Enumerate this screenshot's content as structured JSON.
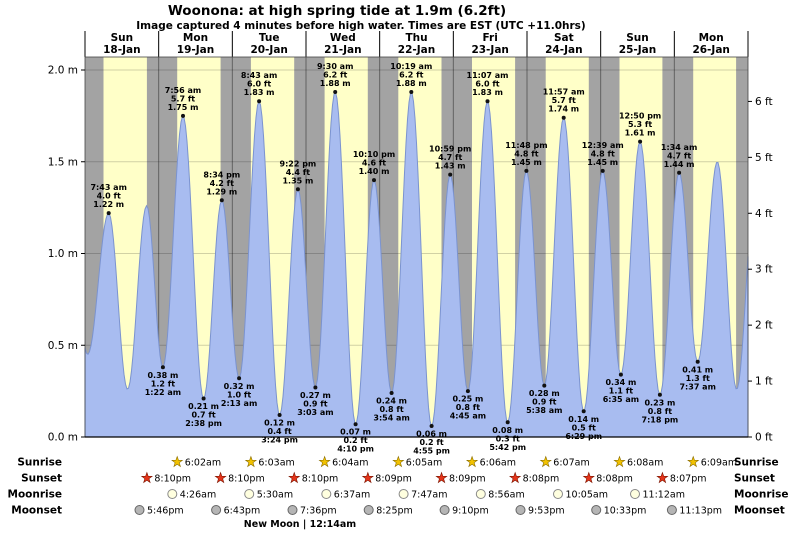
{
  "header": {
    "title": "Woonona: at high  spring tide at 1.9m (6.2ft)",
    "subtitle": "Image captured 4 minutes before high water. Times are EST (UTC +11.0hrs)"
  },
  "chart_data": {
    "type": "area",
    "title": "Woonona: at high  spring tide at 1.9m (6.2ft)",
    "subtitle": "Image captured 4 minutes before high water. Times are EST (UTC +11.0hrs)",
    "days": [
      {
        "name": "Sun",
        "date": "18-Jan"
      },
      {
        "name": "Mon",
        "date": "19-Jan"
      },
      {
        "name": "Tue",
        "date": "20-Jan"
      },
      {
        "name": "Wed",
        "date": "21-Jan"
      },
      {
        "name": "Thu",
        "date": "22-Jan"
      },
      {
        "name": "Fri",
        "date": "23-Jan"
      },
      {
        "name": "Sat",
        "date": "24-Jan"
      },
      {
        "name": "Sun",
        "date": "25-Jan"
      },
      {
        "name": "Mon",
        "date": "26-Jan"
      }
    ],
    "y_axis_left": {
      "unit": "m",
      "ticks": [
        {
          "label": "0.0 m",
          "value": 0.0
        },
        {
          "label": "0.5 m",
          "value": 0.5
        },
        {
          "label": "1.0 m",
          "value": 1.0
        },
        {
          "label": "1.5 m",
          "value": 1.5
        },
        {
          "label": "2.0 m",
          "value": 2.0
        }
      ]
    },
    "y_axis_right": {
      "unit": "ft",
      "ticks": [
        {
          "label": "0 ft",
          "value": 0
        },
        {
          "label": "1 ft",
          "value": 1
        },
        {
          "label": "2 ft",
          "value": 2
        },
        {
          "label": "3 ft",
          "value": 3
        },
        {
          "label": "4 ft",
          "value": 4
        },
        {
          "label": "5 ft",
          "value": 5
        },
        {
          "label": "6 ft",
          "value": 6
        }
      ]
    },
    "ylim_m": [
      0,
      2.07
    ],
    "tide_events": [
      {
        "day": 0,
        "time": "7:43 am",
        "height_m": 1.22,
        "height_ft": "4.0",
        "type": "high"
      },
      {
        "day": 1,
        "time": "1:22 am",
        "height_m": 0.38,
        "height_ft": "1.2",
        "type": "low"
      },
      {
        "day": 1,
        "time": "7:56 am",
        "height_m": 1.75,
        "height_ft": "5.7",
        "type": "high"
      },
      {
        "day": 1,
        "time": "2:38 pm",
        "height_m": 0.21,
        "height_ft": "0.7",
        "type": "low"
      },
      {
        "day": 1,
        "time": "8:34 pm",
        "height_m": 1.29,
        "height_ft": "4.2",
        "type": "high"
      },
      {
        "day": 2,
        "time": "2:13 am",
        "height_m": 0.32,
        "height_ft": "1.0",
        "type": "low"
      },
      {
        "day": 2,
        "time": "8:43 am",
        "height_m": 1.83,
        "height_ft": "6.0",
        "type": "high"
      },
      {
        "day": 2,
        "time": "3:24 pm",
        "height_m": 0.12,
        "height_ft": "0.4",
        "type": "low"
      },
      {
        "day": 2,
        "time": "9:22 pm",
        "height_m": 1.35,
        "height_ft": "4.4",
        "type": "high"
      },
      {
        "day": 3,
        "time": "3:03 am",
        "height_m": 0.27,
        "height_ft": "0.9",
        "type": "low"
      },
      {
        "day": 3,
        "time": "9:30 am",
        "height_m": 1.88,
        "height_ft": "6.2",
        "type": "high"
      },
      {
        "day": 3,
        "time": "4:10 pm",
        "height_m": 0.07,
        "height_ft": "0.2",
        "type": "low"
      },
      {
        "day": 3,
        "time": "10:10 pm",
        "height_m": 1.4,
        "height_ft": "4.6",
        "type": "high"
      },
      {
        "day": 4,
        "time": "3:54 am",
        "height_m": 0.24,
        "height_ft": "0.8",
        "type": "low"
      },
      {
        "day": 4,
        "time": "10:19 am",
        "height_m": 1.88,
        "height_ft": "6.2",
        "type": "high"
      },
      {
        "day": 4,
        "time": "4:55 pm",
        "height_m": 0.06,
        "height_ft": "0.2",
        "type": "low"
      },
      {
        "day": 4,
        "time": "10:59 pm",
        "height_m": 1.43,
        "height_ft": "4.7",
        "type": "high"
      },
      {
        "day": 5,
        "time": "4:45 am",
        "height_m": 0.25,
        "height_ft": "0.8",
        "type": "low"
      },
      {
        "day": 5,
        "time": "11:07 am",
        "height_m": 1.83,
        "height_ft": "6.0",
        "type": "high"
      },
      {
        "day": 5,
        "time": "5:42 pm",
        "height_m": 0.08,
        "height_ft": "0.3",
        "type": "low"
      },
      {
        "day": 5,
        "time": "11:48 pm",
        "height_m": 1.45,
        "height_ft": "4.8",
        "type": "high"
      },
      {
        "day": 6,
        "time": "5:38 am",
        "height_m": 0.28,
        "height_ft": "0.9",
        "type": "low"
      },
      {
        "day": 6,
        "time": "11:57 am",
        "height_m": 1.74,
        "height_ft": "5.7",
        "type": "high"
      },
      {
        "day": 6,
        "time": "6:29 pm",
        "height_m": 0.14,
        "height_ft": "0.5",
        "type": "low"
      },
      {
        "day": 7,
        "time": "12:39 am",
        "height_m": 1.45,
        "height_ft": "4.8",
        "type": "high"
      },
      {
        "day": 7,
        "time": "6:35 am",
        "height_m": 0.34,
        "height_ft": "1.1",
        "type": "low"
      },
      {
        "day": 7,
        "time": "12:50 pm",
        "height_m": 1.61,
        "height_ft": "5.3",
        "type": "high"
      },
      {
        "day": 7,
        "time": "7:18 pm",
        "height_m": 0.23,
        "height_ft": "0.8",
        "type": "low"
      },
      {
        "day": 8,
        "time": "1:34 am",
        "height_m": 1.44,
        "height_ft": "4.7",
        "type": "high"
      },
      {
        "day": 8,
        "time": "7:37 am",
        "height_m": 0.41,
        "height_ft": "1.3",
        "type": "low"
      }
    ],
    "curve_anchors": [
      {
        "t_hours": -5.2,
        "height_m": 1.2
      },
      {
        "t_hours": 0.85,
        "height_m": 0.45
      },
      {
        "t_hours": 13.87,
        "height_m": 0.26
      },
      {
        "t_hours": 20.08,
        "height_m": 1.26
      },
      {
        "t_hours": 206.0,
        "height_m": 1.5
      },
      {
        "t_hours": 212.3,
        "height_m": 0.26
      },
      {
        "t_hours": 218.4,
        "height_m": 1.35
      }
    ],
    "night_shading": {
      "left_band_end_hour": 6.03,
      "right_band_start_hour": 212.12
    },
    "astronomy": {
      "sunrise": [
        {
          "day": 1,
          "time": "6:02am"
        },
        {
          "day": 2,
          "time": "6:03am"
        },
        {
          "day": 3,
          "time": "6:04am"
        },
        {
          "day": 4,
          "time": "6:05am"
        },
        {
          "day": 5,
          "time": "6:06am"
        },
        {
          "day": 6,
          "time": "6:07am"
        },
        {
          "day": 7,
          "time": "6:08am"
        },
        {
          "day": 8,
          "time": "6:09am"
        }
      ],
      "sunset": [
        {
          "day": 0,
          "time": "8:10pm"
        },
        {
          "day": 1,
          "time": "8:10pm"
        },
        {
          "day": 2,
          "time": "8:10pm"
        },
        {
          "day": 3,
          "time": "8:09pm"
        },
        {
          "day": 4,
          "time": "8:09pm"
        },
        {
          "day": 5,
          "time": "8:08pm"
        },
        {
          "day": 6,
          "time": "8:08pm"
        },
        {
          "day": 7,
          "time": "8:07pm"
        }
      ],
      "moonrise": [
        {
          "day": 1,
          "time": "4:26am"
        },
        {
          "day": 2,
          "time": "5:30am"
        },
        {
          "day": 3,
          "time": "6:37am"
        },
        {
          "day": 4,
          "time": "7:47am"
        },
        {
          "day": 5,
          "time": "8:56am"
        },
        {
          "day": 6,
          "time": "10:05am"
        },
        {
          "day": 7,
          "time": "11:12am"
        }
      ],
      "moonset": [
        {
          "day": 0,
          "time": "5:46pm"
        },
        {
          "day": 1,
          "time": "6:43pm"
        },
        {
          "day": 2,
          "time": "7:36pm"
        },
        {
          "day": 3,
          "time": "8:25pm"
        },
        {
          "day": 4,
          "time": "9:10pm"
        },
        {
          "day": 5,
          "time": "9:53pm"
        },
        {
          "day": 6,
          "time": "10:33pm"
        },
        {
          "day": 7,
          "time": "11:13pm"
        }
      ]
    },
    "row_labels": [
      "Sunrise",
      "Sunset",
      "Moonrise",
      "Moonset"
    ],
    "new_moon_text": "New Moon | 12:14am",
    "colors": {
      "day_band": "#ffffc8",
      "night_band": "#a3a3a3",
      "tide_fill": "#a8bcf0",
      "tide_stroke": "#7b93cf",
      "day_label": "#ff0000",
      "sunrise_star": "#f2c200",
      "sunset_star": "#e5341a",
      "moonrise_fill": "#ffffdf",
      "moonset_fill": "#b5b5b5"
    }
  }
}
